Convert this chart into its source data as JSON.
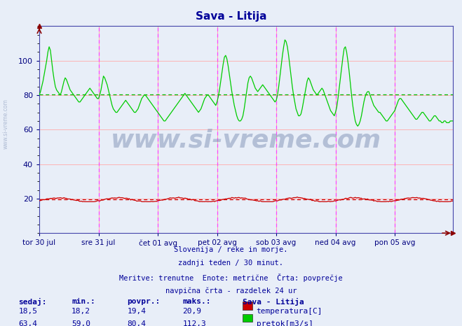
{
  "title": "Sava - Litija",
  "background_color": "#e8eef8",
  "plot_bg_color": "#e8eef8",
  "grid_color": "#ffaaaa",
  "avg_flow_color": "#00bb00",
  "avg_temp_color": "#cc0000",
  "temp_avg": 19.4,
  "flow_avg": 80.4,
  "temp_color": "#cc0000",
  "flow_color": "#00cc00",
  "vline_color": "#ff44ff",
  "ylim_min": 0,
  "ylim_max": 120,
  "yticks": [
    20,
    40,
    60,
    80,
    100
  ],
  "x_labels": [
    "tor 30 jul",
    "sre 31 jul",
    "čet 01 avg",
    "pet 02 avg",
    "sob 03 avg",
    "ned 04 avg",
    "pon 05 avg"
  ],
  "x_positions": [
    0,
    48,
    96,
    144,
    192,
    240,
    288
  ],
  "total_points": 336,
  "subtitle_lines": [
    "Slovenija / reke in morje.",
    "zadnji teden / 30 minut.",
    "Meritve: trenutne  Enote: metrične  Črta: povprečje",
    "navpična črta - razdelek 24 ur"
  ],
  "col_headers": [
    "sedaj:",
    "min.:",
    "povpr.:",
    "maks.:",
    "Sava - Litija"
  ],
  "row1_vals": [
    "18,5",
    "18,2",
    "19,4",
    "20,9"
  ],
  "row2_vals": [
    "63,4",
    "59,0",
    "80,4",
    "112,3"
  ],
  "row1_label": "temperatura[C]",
  "row2_label": "pretok[m3/s]",
  "watermark": "www.si-vreme.com",
  "side_watermark": "www.si-vreme.com",
  "title_color": "#000099",
  "text_color": "#000099",
  "spine_color": "#4444aa",
  "tick_color": "#000080"
}
